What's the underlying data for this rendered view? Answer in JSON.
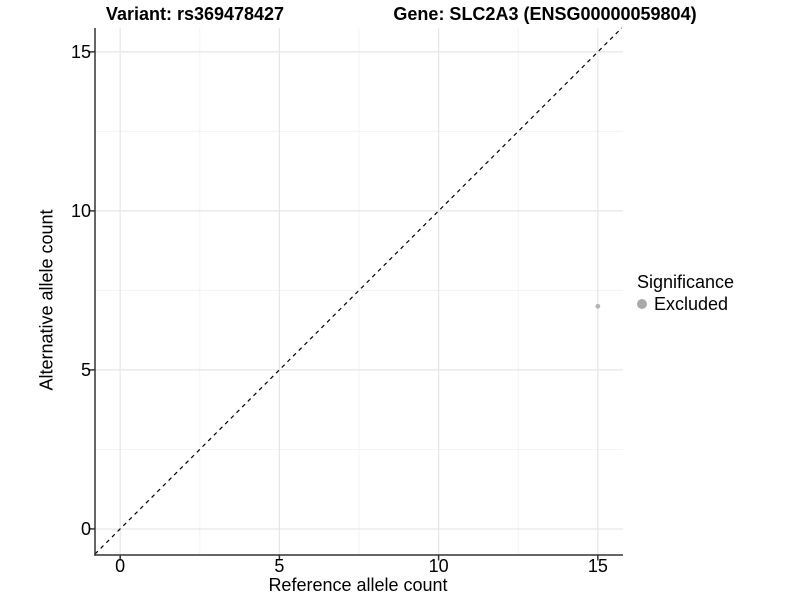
{
  "colors": {
    "background": "#ffffff",
    "grid_major": "#e6e6e6",
    "grid_minor": "#f2f2f2",
    "axis": "#333333",
    "text": "#000000",
    "identity_line": "#000000",
    "point": "#b4b4b4",
    "legend_key": "#a9a9a9"
  },
  "chart_data": {
    "type": "scatter",
    "titles": {
      "variant": "Variant: rs369478427",
      "gene": "Gene: SLC2A3 (ENSG00000059804)"
    },
    "xlabel": "Reference allele count",
    "ylabel": "Alternative allele count",
    "xlim": [
      -0.79,
      15.79
    ],
    "ylim": [
      -0.82,
      15.75
    ],
    "x_ticks": [
      0,
      5,
      10,
      15
    ],
    "y_ticks": [
      0,
      5,
      10,
      15
    ],
    "x_minor_ticks": [
      2.5,
      7.5,
      12.5
    ],
    "y_minor_ticks": [
      2.5,
      7.5,
      12.5
    ],
    "grid": true,
    "identity_line": {
      "equation": "y = x",
      "linetype": "dashed"
    },
    "series": [
      {
        "name": "Excluded",
        "color": "#b4b4b4",
        "points": [
          {
            "x": 15,
            "y": 7
          }
        ]
      }
    ],
    "legend": {
      "title": "Significance",
      "position": "right",
      "items": [
        {
          "label": "Excluded",
          "color": "#a9a9a9"
        }
      ]
    }
  }
}
